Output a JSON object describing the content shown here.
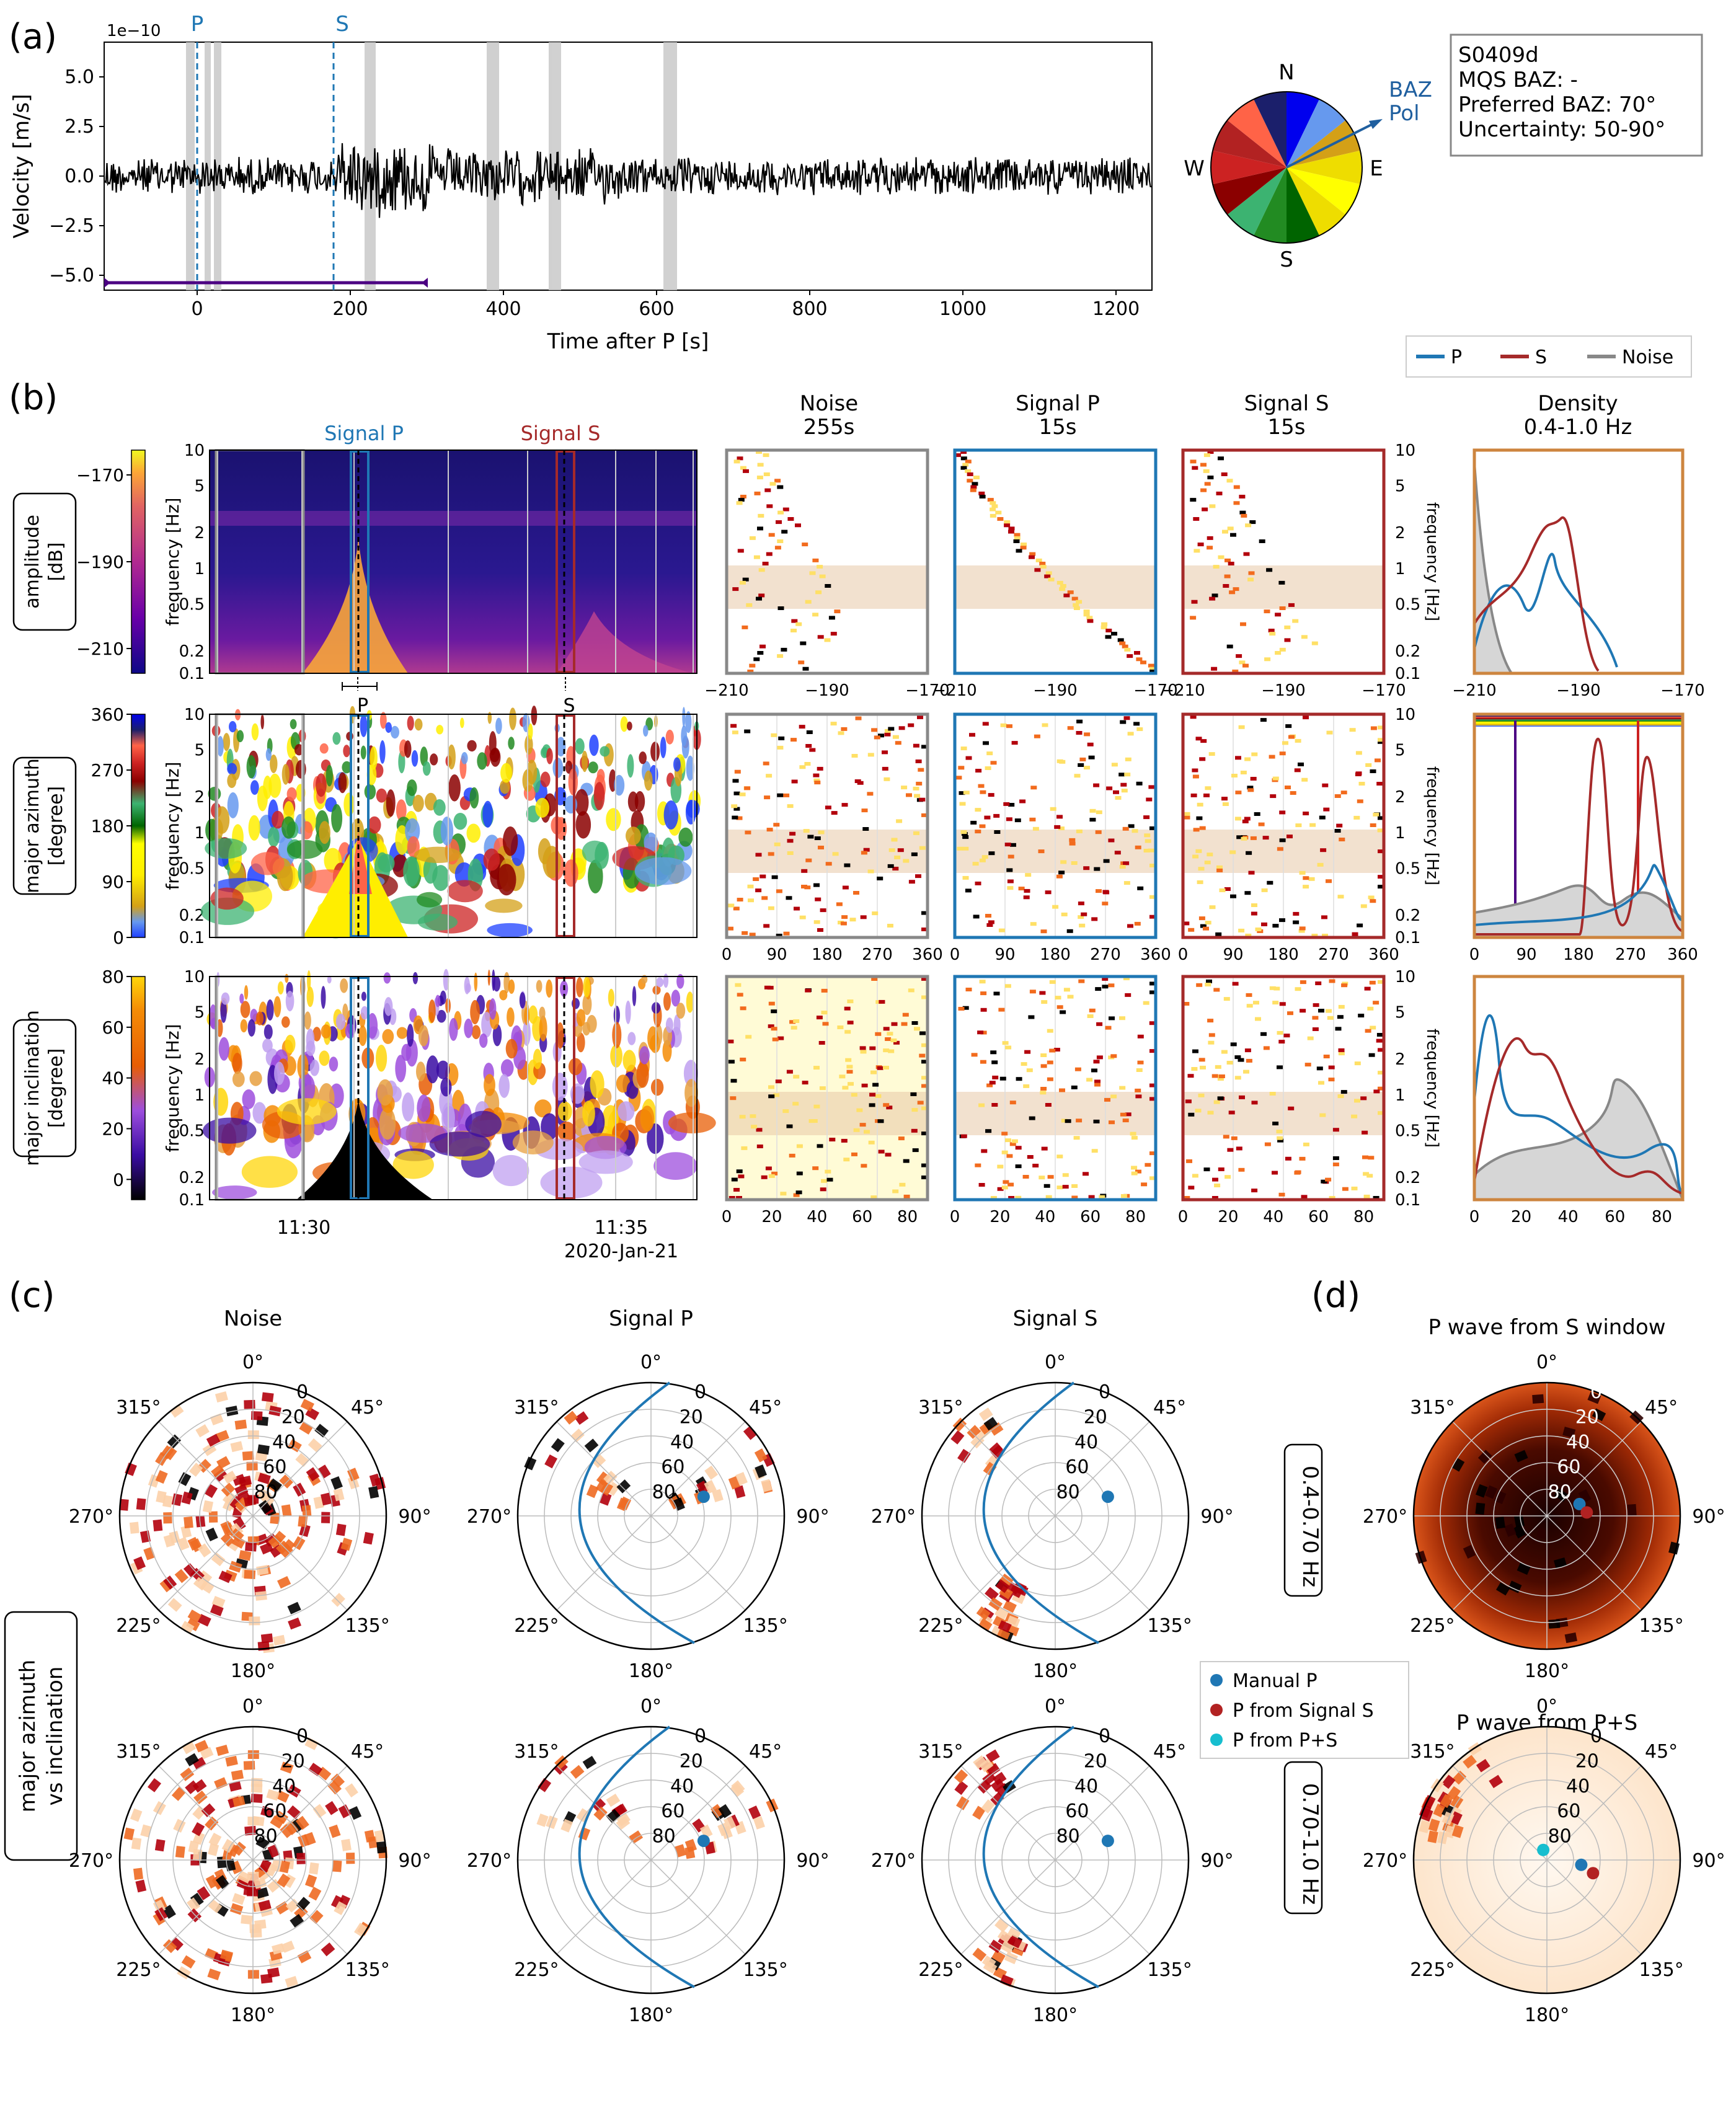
{
  "panel_labels": {
    "a": "(a)",
    "b": "(b)",
    "c": "(c)",
    "d": "(d)"
  },
  "panel_a": {
    "sci_offset": "1e−10",
    "ylabel": "Velocity [m/s]",
    "xlabel": "Time after P [s]",
    "y_ticks": [
      "5.0",
      "2.5",
      "0.0",
      "−2.5",
      "−5.0"
    ],
    "x_ticks": [
      "0",
      "200",
      "400",
      "600",
      "800",
      "1000",
      "1200"
    ],
    "phase_p": "P",
    "phase_s": "S"
  },
  "compass": {
    "n": "N",
    "e": "E",
    "s": "S",
    "w": "W",
    "baz_label": "BAZ",
    "pol_label": "Pol",
    "baz_color": "#1f5f9f",
    "sector_colors": [
      "#0000ee",
      "#6699ee",
      "#d4a017",
      "#eedd00",
      "#ffff00",
      "#eedd00",
      "#006400",
      "#228b22",
      "#3cb371",
      "#8b0000",
      "#cc2222",
      "#b22222",
      "#ff6347",
      "#1b1f6b"
    ]
  },
  "info_box": {
    "line1": "S0409d",
    "line2": "MQS BAZ: -",
    "line3": "Preferred BAZ: 70°",
    "line4": "Uncertainty: 50-90°"
  },
  "legend_b": {
    "p": "P",
    "s": "S",
    "noise": "Noise",
    "p_color": "#1f77b4",
    "s_color": "#a52a2a",
    "noise_color": "#888888"
  },
  "panel_b": {
    "signal_p": "Signal P",
    "signal_s": "Signal S",
    "rows": [
      {
        "label1": "amplitude",
        "label2": "[dB]",
        "cbar_ticks": [
          "−170",
          "−190",
          "−210"
        ]
      },
      {
        "label1": "major azimuth",
        "label2": "[degree]",
        "cbar_ticks": [
          "360",
          "270",
          "180",
          "90",
          "0"
        ]
      },
      {
        "label1": "major inclination",
        "label2": "[degree]",
        "cbar_ticks": [
          "80",
          "60",
          "40",
          "20",
          "0"
        ]
      }
    ],
    "freq_label": "frequency [Hz]",
    "freq_ticks": [
      "10",
      "5",
      "2",
      "1",
      "0.5",
      "0.2",
      "0.1"
    ],
    "time_ticks": [
      "11:30",
      "11:35"
    ],
    "date": "2020-Jan-21",
    "p_marker": "P",
    "s_marker": "S",
    "col_titles": [
      {
        "l1": "Noise",
        "l2": "255s"
      },
      {
        "l1": "Signal P",
        "l2": "15s"
      },
      {
        "l1": "Signal S",
        "l2": "15s"
      },
      {
        "l1": "Density",
        "l2": "0.4-1.0 Hz"
      }
    ],
    "amp_ticks": [
      "−210",
      "−190",
      "−170"
    ],
    "az_ticks": [
      "0",
      "90",
      "180",
      "270",
      "360"
    ],
    "inc_ticks": [
      "0",
      "20",
      "40",
      "60",
      "80"
    ],
    "dens_amp_ticks": [
      "−210",
      "−190",
      "−170"
    ],
    "dens_az_ticks": [
      "0",
      "90",
      "180",
      "270",
      "360"
    ],
    "dens_inc_ticks": [
      "0",
      "20",
      "40",
      "60",
      "80"
    ]
  },
  "panel_c": {
    "titles": [
      "Noise",
      "Signal P",
      "Signal S"
    ],
    "side_label1": "major azimuth",
    "side_label2": "vs inclination",
    "angle_labels": [
      "0°",
      "45°",
      "90°",
      "135°",
      "180°",
      "225°",
      "270°",
      "315°"
    ],
    "radial_labels": [
      "0",
      "20",
      "40",
      "60",
      "80"
    ],
    "band_top": "0.4-0.70 Hz",
    "band_bottom": "0.70-1.0 Hz"
  },
  "panel_d": {
    "title_top": "P wave from S window",
    "title_bottom": "P wave from P+S"
  },
  "legend_c": {
    "manual_p": "Manual P",
    "p_from_s": "P from Signal S",
    "p_from_ps": "P from P+S",
    "manual_color": "#1f77b4",
    "from_s_color": "#b22222",
    "from_ps_color": "#17becf"
  }
}
